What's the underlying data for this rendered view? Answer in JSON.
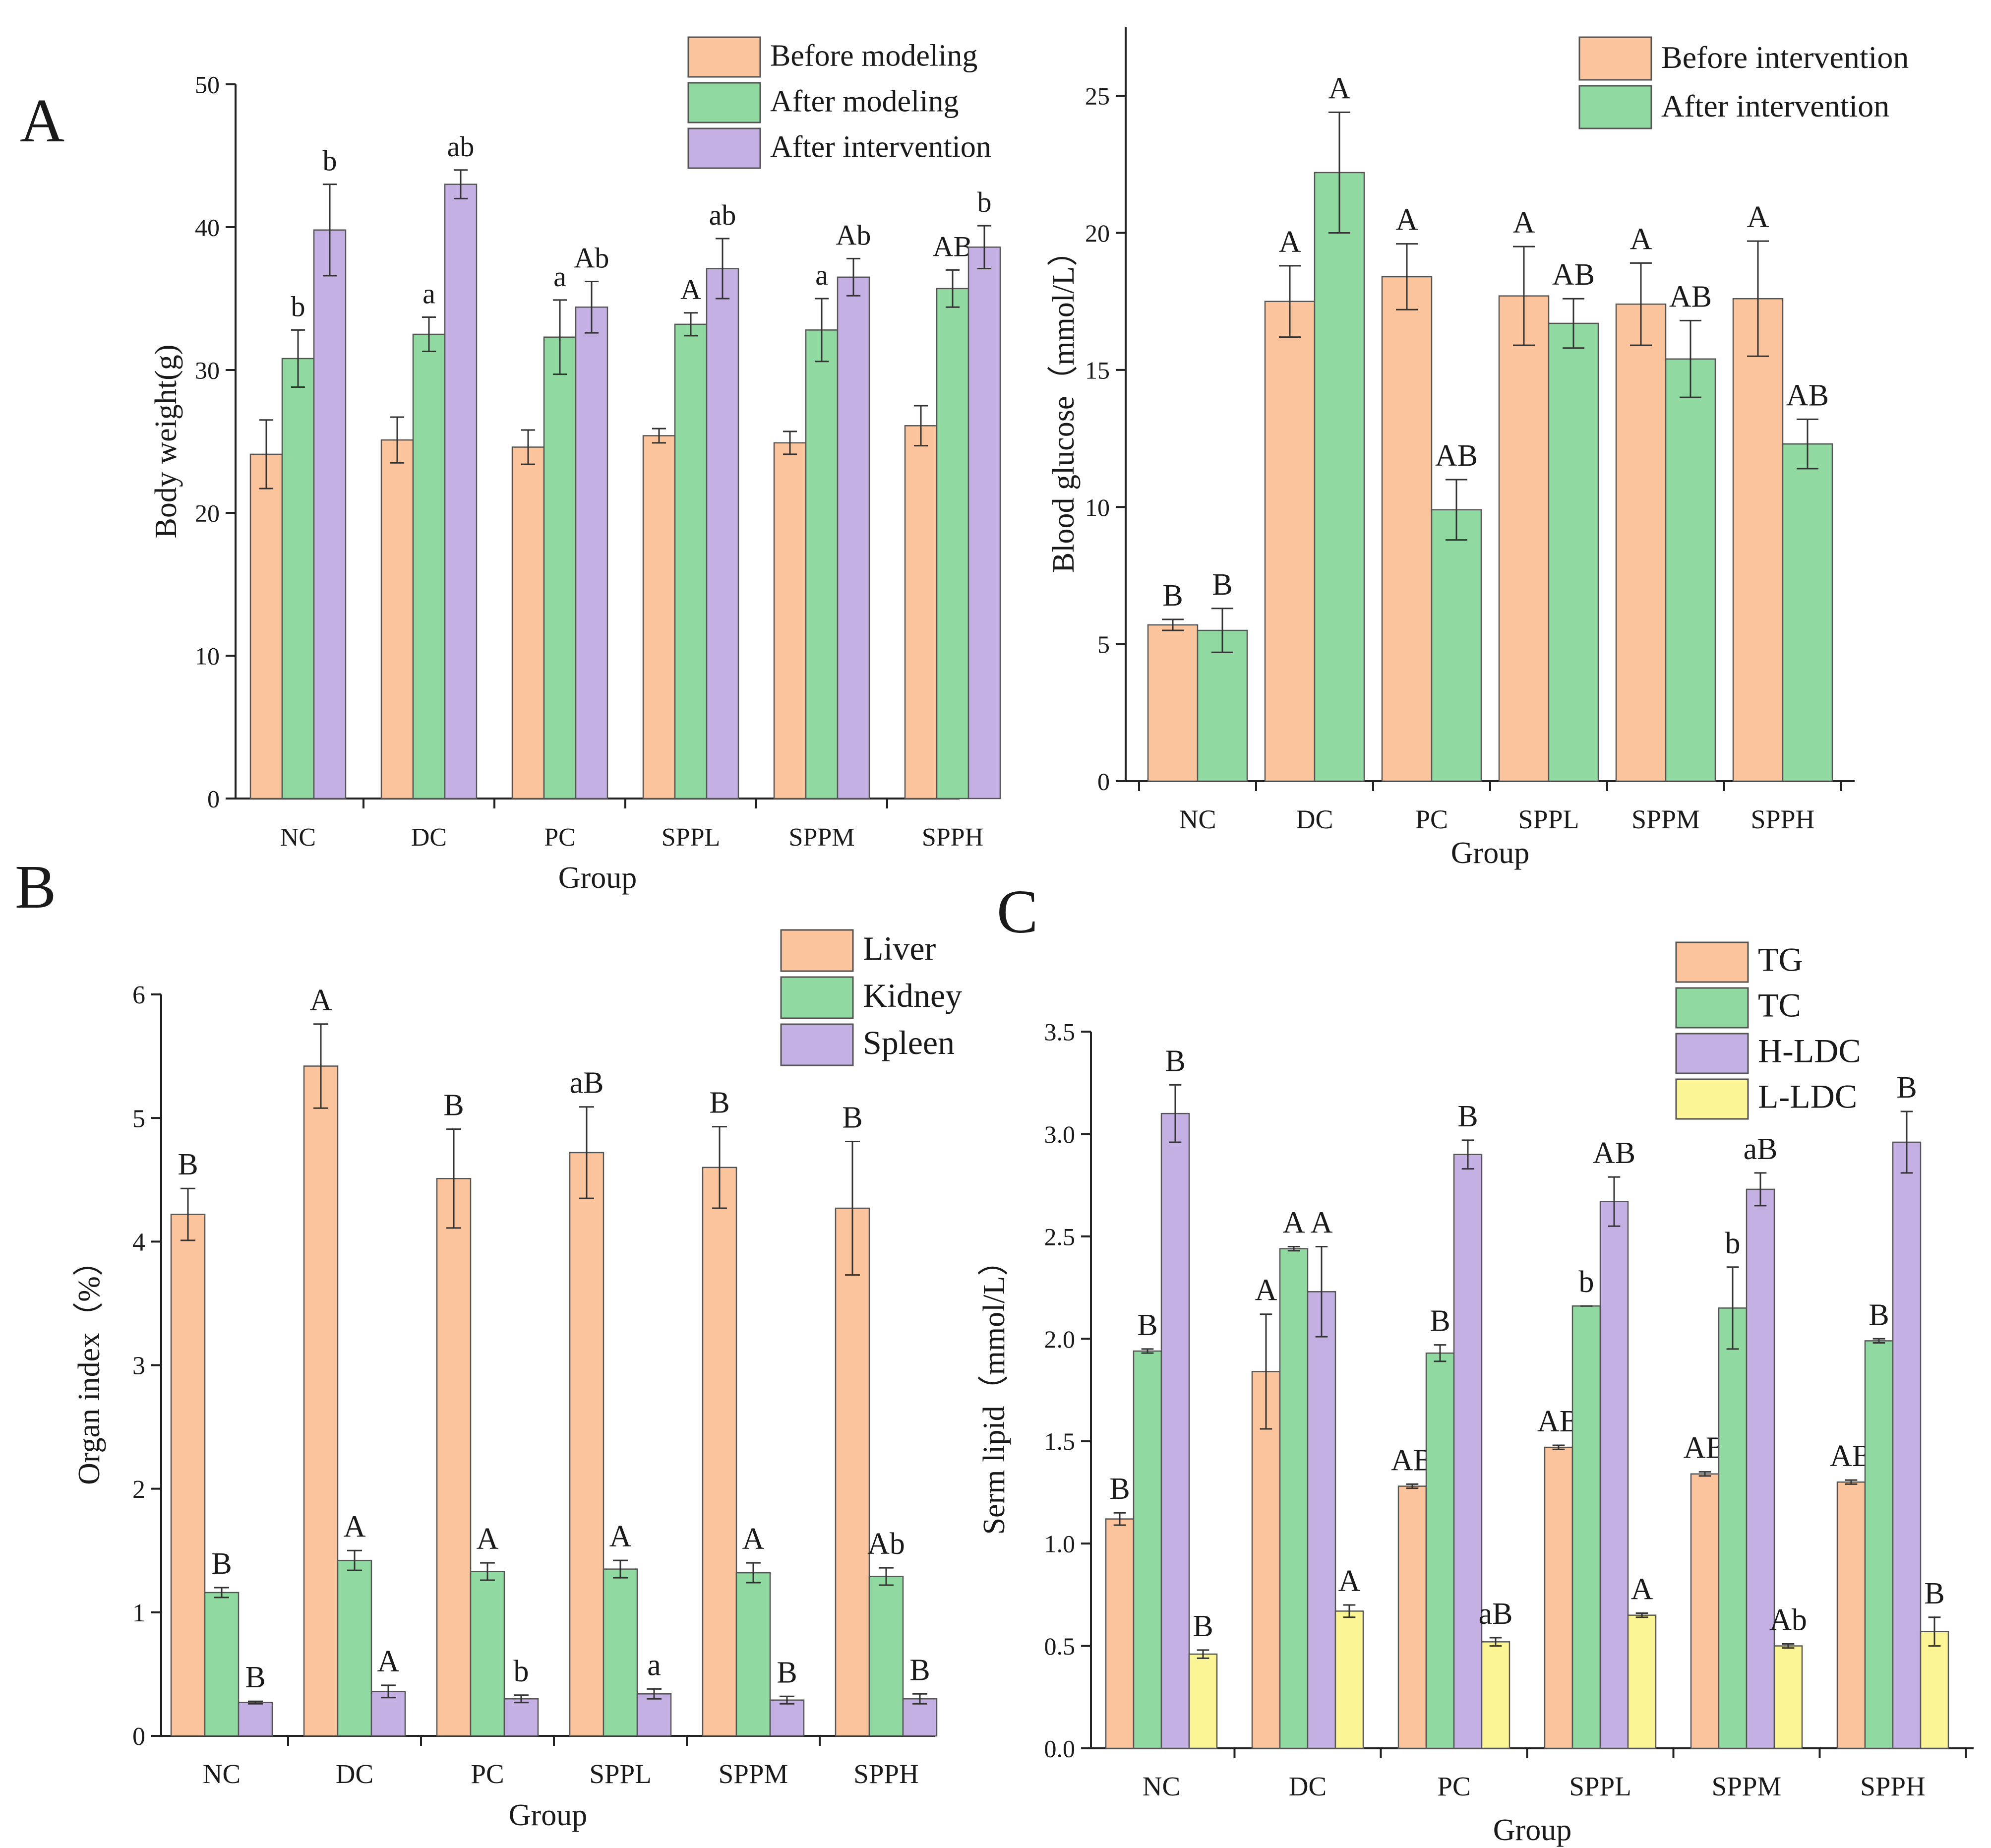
{
  "colors": {
    "orange": "#fbc49c",
    "green": "#90d9a0",
    "purple": "#c4b0e3",
    "yellow": "#fcf596",
    "edge": "#555555",
    "text": "#1a1a1a"
  },
  "panel_labels": {
    "A": "A",
    "B": "B",
    "C": "C"
  },
  "chart_data": [
    {
      "id": "body-weight",
      "type": "bar",
      "panel": "A",
      "title": "",
      "xlabel": "Group",
      "ylabel": "Body weight(g)",
      "ylim": [
        0,
        50
      ],
      "yticks": [
        0,
        10,
        20,
        30,
        40,
        50
      ],
      "ytick_labels": [
        "0",
        "10",
        "20",
        "30",
        "40",
        "50"
      ],
      "categories": [
        "NC",
        "DC",
        "PC",
        "SPPL",
        "SPPM",
        "SPPH"
      ],
      "legend": "top-right",
      "series": [
        {
          "name": "Before modeling",
          "color": "orange",
          "values": [
            24.1,
            25.1,
            24.6,
            25.4,
            24.9,
            26.1
          ],
          "errors": [
            2.4,
            1.6,
            1.2,
            0.5,
            0.8,
            1.4
          ],
          "labels": [
            "",
            "",
            "",
            "",
            "",
            ""
          ]
        },
        {
          "name": "After modeling",
          "color": "green",
          "values": [
            30.8,
            32.5,
            32.3,
            33.2,
            32.8,
            35.7
          ],
          "errors": [
            2.0,
            1.2,
            2.6,
            0.8,
            2.2,
            1.3
          ],
          "labels": [
            "b",
            "a",
            "a",
            "A",
            "a",
            "AB"
          ]
        },
        {
          "name": "After intervention",
          "color": "purple",
          "values": [
            39.8,
            43.0,
            34.4,
            37.1,
            36.5,
            38.6
          ],
          "errors": [
            3.2,
            1.0,
            1.8,
            2.1,
            1.3,
            1.5
          ],
          "labels": [
            "b",
            "ab",
            "Ab",
            "ab",
            "Ab",
            "b"
          ]
        }
      ]
    },
    {
      "id": "blood-glucose",
      "type": "bar",
      "panel": "",
      "title": "",
      "xlabel": "Group",
      "ylabel": "Blood glucose（mmol/L）",
      "ylim": [
        0,
        27.5
      ],
      "yticks": [
        0,
        5,
        10,
        15,
        20,
        25
      ],
      "ytick_labels": [
        "0",
        "5",
        "10",
        "15",
        "20",
        "25"
      ],
      "categories": [
        "NC",
        "DC",
        "PC",
        "SPPL",
        "SPPM",
        "SPPH"
      ],
      "legend": "top-right",
      "series": [
        {
          "name": "Before intervention",
          "color": "orange",
          "values": [
            5.7,
            17.5,
            18.4,
            17.7,
            17.4,
            17.6
          ],
          "errors": [
            0.2,
            1.3,
            1.2,
            1.8,
            1.5,
            2.1
          ],
          "labels": [
            "B",
            "A",
            "A",
            "A",
            "A",
            "A"
          ]
        },
        {
          "name": "After intervention",
          "color": "green",
          "values": [
            5.5,
            22.2,
            9.9,
            16.7,
            15.4,
            12.3
          ],
          "errors": [
            0.8,
            2.2,
            1.1,
            0.9,
            1.4,
            0.9
          ],
          "labels": [
            "B",
            "A",
            "AB",
            "AB",
            "AB",
            "AB"
          ]
        }
      ]
    },
    {
      "id": "organ-index",
      "type": "bar",
      "panel": "B",
      "title": "",
      "xlabel": "Group",
      "ylabel": "Organ index（%）",
      "ylim": [
        0,
        6
      ],
      "yticks": [
        0,
        1,
        2,
        3,
        4,
        5,
        6
      ],
      "ytick_labels": [
        "0",
        "1",
        "2",
        "3",
        "4",
        "5",
        "6"
      ],
      "categories": [
        "NC",
        "DC",
        "PC",
        "SPPL",
        "SPPM",
        "SPPH"
      ],
      "legend": "top-right",
      "series": [
        {
          "name": "Liver",
          "color": "orange",
          "values": [
            4.22,
            5.42,
            4.51,
            4.72,
            4.6,
            4.27
          ],
          "errors": [
            0.21,
            0.34,
            0.4,
            0.37,
            0.33,
            0.54
          ],
          "labels": [
            "B",
            "A",
            "B",
            "aB",
            "B",
            "B"
          ]
        },
        {
          "name": "Kidney",
          "color": "green",
          "values": [
            1.16,
            1.42,
            1.33,
            1.35,
            1.32,
            1.29
          ],
          "errors": [
            0.04,
            0.08,
            0.07,
            0.07,
            0.08,
            0.07
          ],
          "labels": [
            "B",
            "A",
            "A",
            "A",
            "A",
            "Ab"
          ]
        },
        {
          "name": "Spleen",
          "color": "purple",
          "values": [
            0.27,
            0.36,
            0.3,
            0.34,
            0.29,
            0.3
          ],
          "errors": [
            0.01,
            0.05,
            0.03,
            0.04,
            0.03,
            0.04
          ],
          "labels": [
            "B",
            "A",
            "b",
            "a",
            "B",
            "B"
          ]
        }
      ]
    },
    {
      "id": "serum-lipid",
      "type": "bar",
      "panel": "C",
      "title": "",
      "xlabel": "Group",
      "ylabel": "Serm lipid（mmol/L）",
      "ylim": [
        0,
        3.5
      ],
      "yticks": [
        0,
        0.5,
        1.0,
        1.5,
        2.0,
        2.5,
        3.0,
        3.5
      ],
      "ytick_labels": [
        "0.0",
        "0.5",
        "1.0",
        "1.5",
        "2.0",
        "2.5",
        "3.0",
        "3.5"
      ],
      "categories": [
        "NC",
        "DC",
        "PC",
        "SPPL",
        "SPPM",
        "SPPH"
      ],
      "legend": "top-right",
      "series": [
        {
          "name": "TG",
          "color": "orange",
          "values": [
            1.12,
            1.84,
            1.28,
            1.47,
            1.34,
            1.3
          ],
          "errors": [
            0.03,
            0.28,
            0.01,
            0.01,
            0.01,
            0.01
          ],
          "labels": [
            "B",
            "A",
            "AB",
            "AB",
            "AB",
            "AB"
          ]
        },
        {
          "name": "TC",
          "color": "green",
          "values": [
            1.94,
            2.44,
            1.93,
            2.16,
            2.15,
            1.99
          ],
          "errors": [
            0.01,
            0.01,
            0.04,
            0.0,
            0.2,
            0.01
          ],
          "labels": [
            "B",
            "A",
            "B",
            "b",
            "b",
            "B"
          ]
        },
        {
          "name": "H-LDC",
          "color": "purple",
          "values": [
            3.1,
            2.23,
            2.9,
            2.67,
            2.73,
            2.96
          ],
          "errors": [
            0.14,
            0.22,
            0.07,
            0.12,
            0.08,
            0.15
          ],
          "labels": [
            "B",
            "A",
            "B",
            "AB",
            "aB",
            "B"
          ]
        },
        {
          "name": "L-LDC",
          "color": "yellow",
          "values": [
            0.46,
            0.67,
            0.52,
            0.65,
            0.5,
            0.57
          ],
          "errors": [
            0.02,
            0.03,
            0.02,
            0.01,
            0.01,
            0.07
          ],
          "labels": [
            "B",
            "A",
            "aB",
            "A",
            "Ab",
            "B"
          ]
        }
      ]
    }
  ]
}
